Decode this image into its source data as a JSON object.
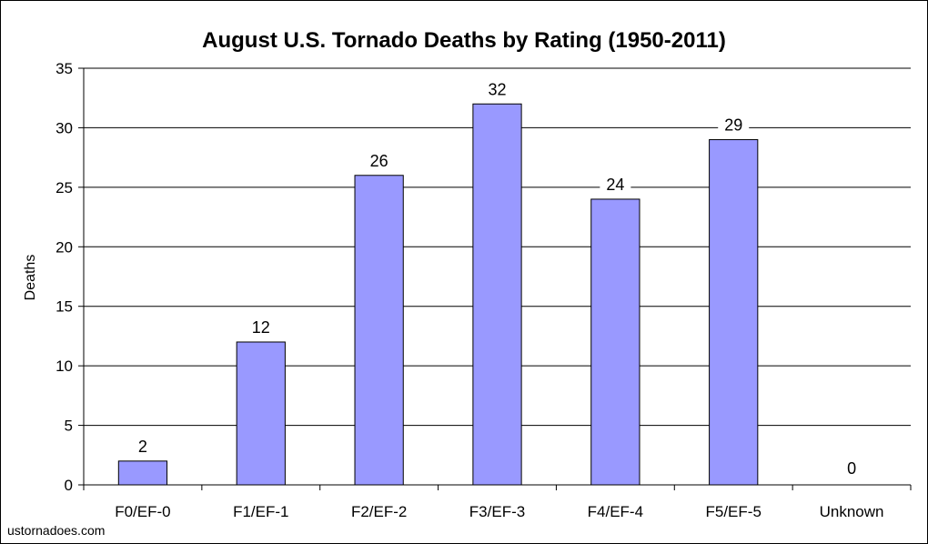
{
  "chart_data": {
    "type": "bar",
    "title": "August U.S. Tornado Deaths by Rating (1950-2011)",
    "xlabel": "",
    "ylabel": "Deaths",
    "categories": [
      "F0/EF-0",
      "F1/EF-1",
      "F2/EF-2",
      "F3/EF-3",
      "F4/EF-4",
      "F5/EF-5",
      "Unknown"
    ],
    "values": [
      2,
      12,
      26,
      32,
      24,
      29,
      0
    ],
    "ylim": [
      0,
      35
    ],
    "yticks": [
      0,
      5,
      10,
      15,
      20,
      25,
      30,
      35
    ],
    "grid": true,
    "legend": "none",
    "bar_color": "#9999ff",
    "bar_outline_color": "#000000"
  },
  "source_note": "ustornadoes.com"
}
